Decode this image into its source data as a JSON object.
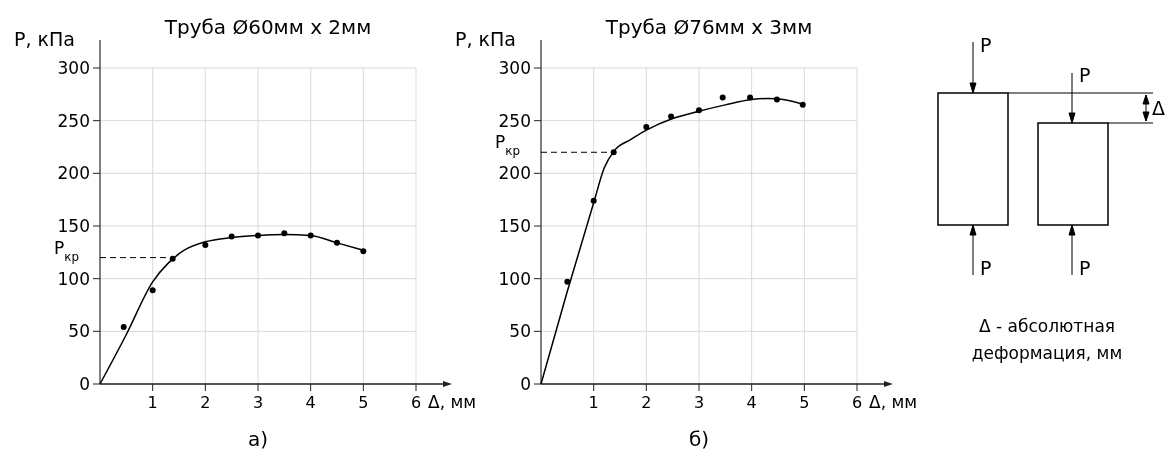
{
  "chart_data": [
    {
      "type": "scatter",
      "title": "Труба Ø60мм x 2мм",
      "xlabel": "Δ, мм",
      "ylabel": "P, кПа",
      "xlim": [
        0,
        6
      ],
      "xticks": [
        1,
        2,
        3,
        4,
        5,
        6
      ],
      "ylim": [
        0,
        300
      ],
      "yticks": [
        0,
        50,
        100,
        150,
        200,
        250,
        300
      ],
      "grid": true,
      "marker": "circle",
      "annotations": [
        "а)"
      ],
      "ref_lines": [
        {
          "axis": "y",
          "value": 120,
          "label": "P$_{кр}$",
          "line_style": "dashed"
        }
      ],
      "series": [
        {
          "type": "scatter",
          "color": "#000000",
          "x": [
            0.45,
            1,
            1.38,
            2,
            2.5,
            3,
            3.5,
            4,
            4.5,
            5
          ],
          "values": [
            54,
            89,
            119,
            132,
            140,
            141,
            143,
            141,
            134,
            126
          ]
        },
        {
          "type": "line",
          "color": "#000000",
          "marker": "none",
          "x": [
            0,
            0.5,
            1,
            1.3,
            1.6,
            2,
            2.5,
            3,
            3.5,
            4,
            4.5,
            5
          ],
          "values": [
            0,
            47,
            97,
            115,
            127,
            135,
            139,
            141,
            142,
            141,
            134,
            127
          ]
        }
      ]
    },
    {
      "type": "scatter",
      "title": "Труба Ø76мм x 3мм",
      "xlabel": "Δ, мм",
      "ylabel": "P, кПа",
      "xlim": [
        0,
        6
      ],
      "xticks": [
        1,
        2,
        3,
        4,
        5,
        6
      ],
      "ylim": [
        0,
        300
      ],
      "yticks": [
        0,
        50,
        100,
        150,
        200,
        250,
        300
      ],
      "grid": true,
      "marker": "circle",
      "annotations": [
        "б)"
      ],
      "ref_lines": [
        {
          "axis": "y",
          "value": 220,
          "label": "P$_{кр}$",
          "line_style": "dashed"
        }
      ],
      "series": [
        {
          "type": "scatter",
          "color": "#000000",
          "x": [
            0.5,
            1,
            1.38,
            2,
            2.47,
            3,
            3.45,
            3.97,
            4.48,
            4.97
          ],
          "values": [
            97,
            174,
            220,
            244,
            254,
            260,
            272,
            272,
            270,
            265
          ]
        },
        {
          "type": "line",
          "color": "#000000",
          "marker": "none",
          "x": [
            0,
            0.5,
            1,
            1.2,
            1.4,
            1.7,
            2,
            2.5,
            3,
            3.5,
            4,
            4.3,
            4.6,
            5
          ],
          "values": [
            0,
            88,
            172,
            205,
            222,
            232,
            241,
            252,
            259,
            265,
            270,
            271,
            270,
            265
          ]
        }
      ]
    },
    {
      "type": "other",
      "annotations": [
        "P",
        "P",
        "P",
        "P",
        "Δ",
        "Δ - абсолютная",
        "деформация, мм"
      ]
    }
  ]
}
